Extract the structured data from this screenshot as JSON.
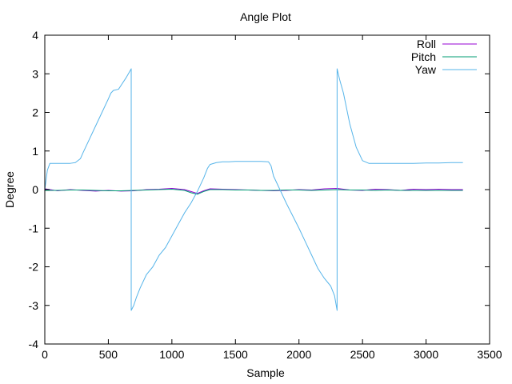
{
  "chart_data": {
    "type": "line",
    "title": "Angle Plot",
    "xlabel": "Sample",
    "ylabel": "Degree",
    "xlim": [
      0,
      3500
    ],
    "ylim": [
      -4,
      4
    ],
    "xticks": [
      0,
      500,
      1000,
      1500,
      2000,
      2500,
      3000,
      3500
    ],
    "yticks": [
      -4,
      -3,
      -2,
      -1,
      0,
      1,
      2,
      3,
      4
    ],
    "grid": false,
    "legend": "top-right",
    "series": [
      {
        "name": "Roll",
        "color": "#9400d3",
        "x": [
          0,
          100,
          200,
          300,
          400,
          500,
          600,
          700,
          800,
          900,
          1000,
          1100,
          1150,
          1200,
          1250,
          1300,
          1400,
          1500,
          1600,
          1700,
          1800,
          1900,
          2000,
          2100,
          2200,
          2300,
          2400,
          2500,
          2600,
          2700,
          2800,
          2900,
          3000,
          3100,
          3200,
          3290
        ],
        "y": [
          0.02,
          -0.03,
          0.0,
          -0.02,
          -0.04,
          -0.02,
          -0.04,
          -0.03,
          0.0,
          0.01,
          0.03,
          0.0,
          -0.05,
          -0.1,
          -0.03,
          0.02,
          0.01,
          0.0,
          -0.01,
          -0.02,
          -0.03,
          -0.02,
          0.0,
          -0.01,
          0.02,
          0.03,
          -0.01,
          -0.02,
          0.01,
          0.0,
          -0.02,
          0.01,
          0.0,
          0.01,
          0.0,
          0.0
        ]
      },
      {
        "name": "Pitch",
        "color": "#009e73",
        "x": [
          0,
          100,
          200,
          300,
          400,
          500,
          600,
          700,
          800,
          900,
          1000,
          1100,
          1150,
          1200,
          1250,
          1300,
          1400,
          1500,
          1600,
          1700,
          1800,
          1900,
          2000,
          2100,
          2200,
          2300,
          2400,
          2500,
          2600,
          2700,
          2800,
          2900,
          3000,
          3100,
          3200,
          3290
        ],
        "y": [
          -0.02,
          -0.02,
          -0.01,
          -0.01,
          -0.02,
          -0.03,
          -0.03,
          -0.02,
          -0.01,
          0.0,
          0.01,
          -0.02,
          -0.08,
          -0.12,
          -0.05,
          0.0,
          0.0,
          -0.01,
          -0.01,
          -0.02,
          -0.02,
          -0.01,
          -0.01,
          -0.02,
          -0.01,
          0.0,
          -0.01,
          -0.01,
          -0.02,
          -0.01,
          -0.02,
          -0.02,
          -0.02,
          -0.02,
          -0.02,
          -0.02
        ]
      },
      {
        "name": "Yaw",
        "color": "#56b4e9",
        "x": [
          0,
          20,
          40,
          100,
          200,
          240,
          280,
          300,
          350,
          400,
          450,
          500,
          520,
          540,
          580,
          600,
          640,
          680,
          680,
          700,
          720,
          750,
          800,
          850,
          900,
          950,
          1000,
          1050,
          1100,
          1150,
          1200,
          1250,
          1280,
          1300,
          1350,
          1400,
          1450,
          1500,
          1550,
          1600,
          1700,
          1760,
          1780,
          1800,
          1850,
          1900,
          2000,
          2100,
          2150,
          2200,
          2250,
          2280,
          2300,
          2300,
          2320,
          2350,
          2400,
          2450,
          2500,
          2550,
          2600,
          2700,
          2800,
          2900,
          3000,
          3100,
          3200,
          3290
        ],
        "y": [
          0.0,
          0.5,
          0.68,
          0.68,
          0.68,
          0.7,
          0.8,
          0.95,
          1.3,
          1.65,
          2.0,
          2.35,
          2.5,
          2.57,
          2.6,
          2.7,
          2.9,
          3.13,
          -3.13,
          -3.0,
          -2.8,
          -2.55,
          -2.2,
          -2.0,
          -1.7,
          -1.5,
          -1.2,
          -0.9,
          -0.6,
          -0.35,
          -0.05,
          0.3,
          0.55,
          0.65,
          0.7,
          0.72,
          0.72,
          0.73,
          0.73,
          0.73,
          0.73,
          0.72,
          0.62,
          0.35,
          0.0,
          -0.35,
          -1.0,
          -1.7,
          -2.05,
          -2.3,
          -2.5,
          -2.75,
          -3.13,
          3.13,
          2.85,
          2.5,
          1.7,
          1.1,
          0.75,
          0.68,
          0.68,
          0.68,
          0.68,
          0.68,
          0.69,
          0.69,
          0.7,
          0.7
        ]
      }
    ]
  }
}
